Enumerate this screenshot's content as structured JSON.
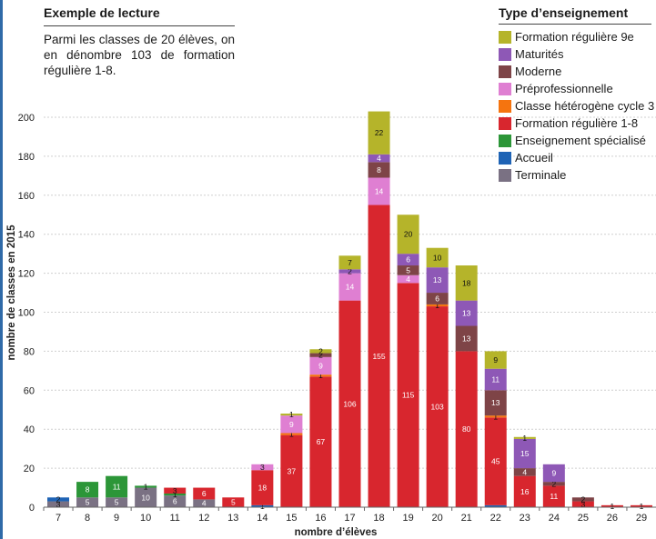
{
  "reading_box": {
    "title": "Exemple de lecture",
    "text": "Parmi les classes de 20 élèves, on en dénombre 103 de formation régulière 1-8."
  },
  "legend": {
    "title": "Type d’enseignement"
  },
  "colors": {
    "Formation régulière 9e": "#b5b42a",
    "Maturités": "#8e58b6",
    "Moderne": "#7e4447",
    "Préprofessionnelle": "#df7fd2",
    "Classe hétérogène cycle 3": "#f5740f",
    "Formation régulière 1-8": "#d8262e",
    "Enseignement spécialisé": "#2c9638",
    "Accueil": "#1e63b5",
    "Terminale": "#7a7183",
    "frame": "#2f6aa8"
  },
  "chart_data": {
    "type": "bar",
    "stacked": true,
    "xlabel": "nombre d’élèves",
    "ylabel": "nombre de classes en 2015",
    "ylim": [
      0,
      210
    ],
    "yticks": [
      0,
      20,
      40,
      60,
      80,
      100,
      120,
      140,
      160,
      180,
      200
    ],
    "grid": true,
    "legend_position": "top-right",
    "categories": [
      "7",
      "8",
      "9",
      "10",
      "11",
      "12",
      "13",
      "14",
      "15",
      "16",
      "17",
      "18",
      "19",
      "20",
      "21",
      "22",
      "23",
      "24",
      "25",
      "26",
      "29"
    ],
    "series": [
      {
        "name": "Terminale",
        "values": [
          3,
          5,
          5,
          10,
          6,
          4,
          0,
          0,
          0,
          0,
          0,
          0,
          0,
          0,
          0,
          0,
          0,
          0,
          0,
          0,
          0
        ],
        "labels": [
          "3",
          "5",
          "5",
          "10",
          "6",
          "4",
          "",
          "",
          "",
          "",
          "",
          "",
          "",
          "",
          "",
          "",
          "",
          "",
          "",
          "",
          ""
        ]
      },
      {
        "name": "Accueil",
        "values": [
          2,
          0,
          0,
          0,
          0,
          0,
          0,
          1,
          0,
          0,
          0,
          0,
          0,
          0,
          0,
          1,
          0,
          0,
          0,
          0,
          0
        ],
        "labels": [
          "2",
          "",
          "",
          "",
          "",
          "",
          "",
          "1",
          "",
          "",
          "",
          "",
          "",
          "",
          "",
          "",
          "",
          "",
          "",
          "",
          ""
        ]
      },
      {
        "name": "Enseignement spécialisé",
        "values": [
          0,
          8,
          11,
          1,
          1,
          0,
          0,
          0,
          0,
          0,
          0,
          0,
          0,
          0,
          0,
          0,
          0,
          0,
          0,
          0,
          0
        ],
        "labels": [
          "",
          "8",
          "11",
          "1",
          "1",
          "",
          "",
          "",
          "",
          "",
          "",
          "",
          "",
          "",
          "",
          "",
          "",
          "",
          "",
          "",
          ""
        ]
      },
      {
        "name": "Formation régulière 1-8",
        "values": [
          0,
          0,
          0,
          0,
          3,
          6,
          5,
          18,
          37,
          67,
          106,
          155,
          115,
          103,
          80,
          45,
          16,
          11,
          3,
          1,
          1
        ],
        "labels": [
          "",
          "",
          "",
          "",
          "3",
          "6",
          "5",
          "18",
          "37",
          "67",
          "106",
          "155",
          "115",
          "103",
          "80",
          "45",
          "16",
          "11",
          "3",
          "1",
          "1"
        ]
      },
      {
        "name": "Classe hétérogène cycle 3",
        "values": [
          0,
          0,
          0,
          0,
          0,
          0,
          0,
          0,
          1,
          1,
          0,
          0,
          0,
          1,
          0,
          1,
          0,
          0,
          0,
          0,
          0
        ],
        "labels": [
          "",
          "",
          "",
          "",
          "",
          "",
          "",
          "",
          "1",
          "1",
          "",
          "",
          "",
          "1",
          "",
          "1",
          "",
          "",
          "",
          "",
          ""
        ]
      },
      {
        "name": "Préprofessionnelle",
        "values": [
          0,
          0,
          0,
          0,
          0,
          0,
          0,
          3,
          9,
          9,
          14,
          14,
          4,
          0,
          0,
          0,
          0,
          0,
          0,
          0,
          0
        ],
        "labels": [
          "",
          "",
          "",
          "",
          "",
          "",
          "",
          "3",
          "9",
          "9",
          "14",
          "14",
          "4",
          "",
          "",
          "",
          "",
          "",
          "",
          "",
          ""
        ]
      },
      {
        "name": "Moderne",
        "values": [
          0,
          0,
          0,
          0,
          0,
          0,
          0,
          0,
          0,
          2,
          0,
          8,
          5,
          6,
          13,
          13,
          4,
          2,
          2,
          0,
          0
        ],
        "labels": [
          "",
          "",
          "",
          "",
          "",
          "",
          "",
          "",
          "",
          "2",
          "",
          "8",
          "5",
          "6",
          "13",
          "13",
          "4",
          "2",
          "2",
          "",
          ""
        ]
      },
      {
        "name": "Maturités",
        "values": [
          0,
          0,
          0,
          0,
          0,
          0,
          0,
          0,
          0,
          0,
          2,
          4,
          6,
          13,
          13,
          11,
          15,
          9,
          0,
          0,
          0
        ],
        "labels": [
          "",
          "",
          "",
          "",
          "",
          "",
          "",
          "",
          "",
          "",
          "2",
          "4",
          "6",
          "13",
          "13",
          "11",
          "15",
          "9",
          "",
          "",
          ""
        ]
      },
      {
        "name": "Formation régulière 9e",
        "values": [
          0,
          0,
          0,
          0,
          0,
          0,
          0,
          0,
          1,
          2,
          7,
          22,
          20,
          10,
          18,
          9,
          1,
          0,
          0,
          0,
          0
        ],
        "labels": [
          "",
          "",
          "",
          "",
          "",
          "",
          "",
          "",
          "1",
          "2",
          "7",
          "22",
          "20",
          "10",
          "18",
          "9",
          "1",
          "",
          "",
          "",
          ""
        ]
      }
    ]
  }
}
